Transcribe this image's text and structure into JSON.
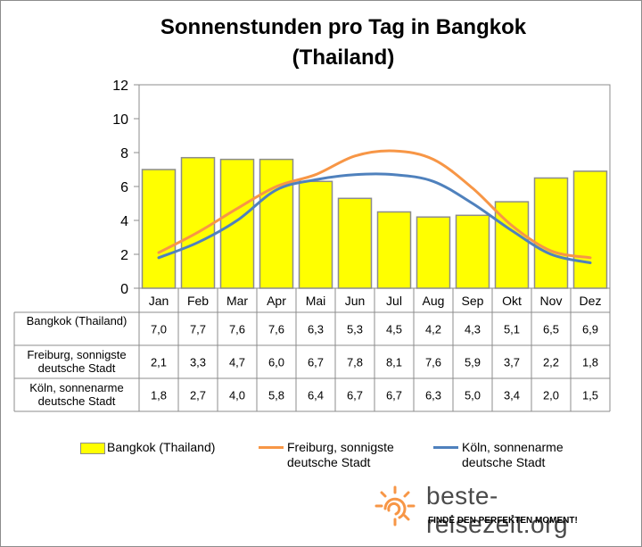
{
  "chart_data": {
    "type": "bar",
    "title": "Sonnenstunden pro Tag in Bangkok\n(Thailand)",
    "categories": [
      "Jan",
      "Feb",
      "Mar",
      "Apr",
      "Mai",
      "Jun",
      "Jul",
      "Aug",
      "Sep",
      "Okt",
      "Nov",
      "Dez"
    ],
    "ylim": [
      0,
      12
    ],
    "yticks": [
      "0",
      "2",
      "4",
      "6",
      "8",
      "10",
      "12"
    ],
    "ytick_values": [
      0,
      2,
      4,
      6,
      8,
      10,
      12
    ],
    "grid": false,
    "legend_position": "bottom",
    "series": [
      {
        "name": "Bangkok (Thailand)",
        "type": "bar",
        "color": "#ffff00",
        "values": [
          7.0,
          7.7,
          7.6,
          7.6,
          6.3,
          5.3,
          4.5,
          4.2,
          4.3,
          5.1,
          6.5,
          6.9
        ],
        "labels": [
          "7,0",
          "7,7",
          "7,6",
          "7,6",
          "6,3",
          "5,3",
          "4,5",
          "4,2",
          "4,3",
          "5,1",
          "6,5",
          "6,9"
        ]
      },
      {
        "name": "Freiburg, sonnigste deutsche Stadt",
        "type": "line",
        "color": "#f79646",
        "values": [
          2.1,
          3.3,
          4.7,
          6.0,
          6.7,
          7.8,
          8.1,
          7.6,
          5.9,
          3.7,
          2.2,
          1.8
        ],
        "labels": [
          "2,1",
          "3,3",
          "4,7",
          "6,0",
          "6,7",
          "7,8",
          "8,1",
          "7,6",
          "5,9",
          "3,7",
          "2,2",
          "1,8"
        ]
      },
      {
        "name": "Köln, sonnenarme deutsche Stadt",
        "type": "line",
        "color": "#4f81bd",
        "values": [
          1.8,
          2.7,
          4.0,
          5.8,
          6.4,
          6.7,
          6.7,
          6.3,
          5.0,
          3.4,
          2.0,
          1.5
        ],
        "labels": [
          "1,8",
          "2,7",
          "4,0",
          "5,8",
          "6,4",
          "6,7",
          "6,7",
          "6,3",
          "5,0",
          "3,4",
          "2,0",
          "1,5"
        ]
      }
    ],
    "table_row_labels": [
      "Bangkok (Thailand)",
      "Freiburg, sonnigste\ndeutsche Stadt",
      "Köln, sonnenarme\ndeutsche Stadt"
    ],
    "legend_labels": [
      "Bangkok (Thailand)",
      "Freiburg, sonnigste\ndeutsche Stadt",
      "Köln, sonnenarme\ndeutsche Stadt"
    ]
  },
  "brand": {
    "name": "beste-reisezeit.org",
    "tagline": "FINDE DEN PERFEKTEN MOMENT!",
    "icon": "sun-icon",
    "icon_color": "#f79646"
  }
}
